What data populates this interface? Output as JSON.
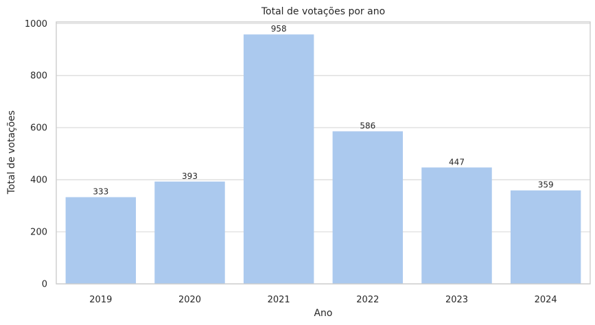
{
  "chart_data": {
    "type": "bar",
    "title": "Total de votações por ano",
    "xlabel": "Ano",
    "ylabel": "Total de votações",
    "categories": [
      "2019",
      "2020",
      "2021",
      "2022",
      "2023",
      "2024"
    ],
    "values": [
      333,
      393,
      958,
      586,
      447,
      359
    ],
    "data_labels": [
      "333",
      "393",
      "958",
      "586",
      "447",
      "359"
    ],
    "y_ticks": [
      0,
      200,
      400,
      600,
      800,
      1000
    ],
    "y_tick_labels": [
      "0",
      "200",
      "400",
      "600",
      "800",
      "1000"
    ],
    "ylim": [
      0,
      1006
    ],
    "grid": true,
    "bar_color": "#abc9ee",
    "grid_color": "#d9d9d9",
    "spine_color": "#cccccc",
    "text_color": "#262626"
  }
}
